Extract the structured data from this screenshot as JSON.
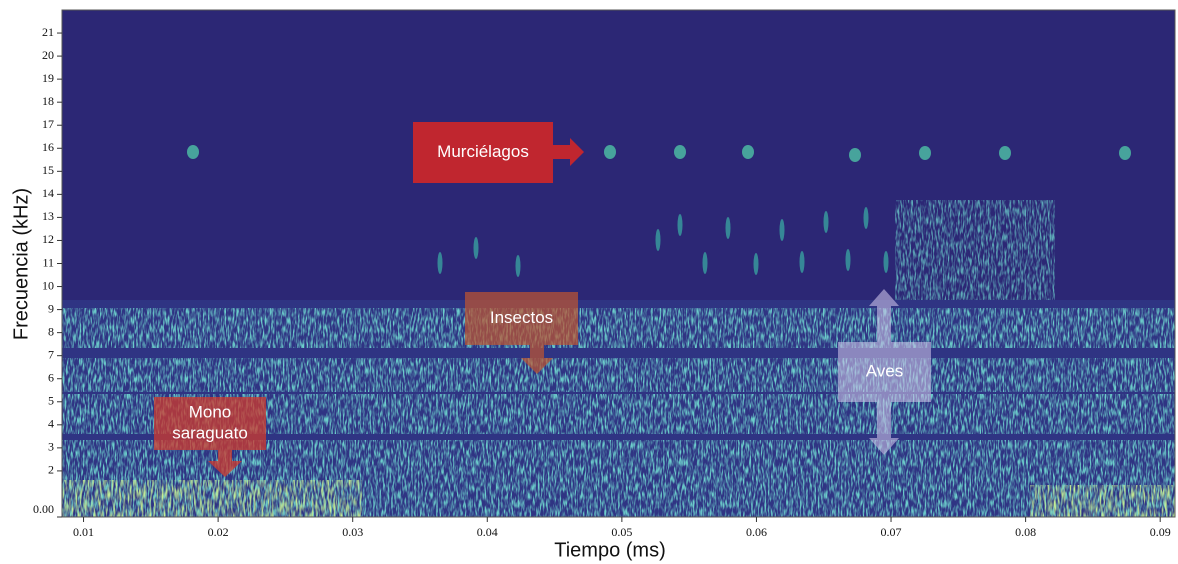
{
  "chart_data": {
    "type": "spectrogram",
    "xlabel": "Tiempo (ms)",
    "ylabel": "Frecuencia (kHz)",
    "xlim": [
      0.0084,
      0.0911
    ],
    "xticks": [
      0.01,
      0.02,
      0.03,
      0.04,
      0.05,
      0.06,
      0.07,
      0.08,
      0.09
    ],
    "ylim": [
      0,
      22
    ],
    "yticks": [
      {
        "value": 0,
        "label": "0.00"
      },
      2,
      3,
      4,
      5,
      6,
      7,
      8,
      9,
      10,
      11,
      12,
      13,
      14,
      15,
      16,
      17,
      18,
      19,
      20,
      21
    ],
    "annotations": [
      {
        "lines": [
          "Murciélagos"
        ]
      },
      {
        "lines": [
          "Insectos"
        ]
      },
      {
        "lines": [
          "Mono",
          "saraguato"
        ]
      },
      {
        "lines": [
          "Aves"
        ]
      }
    ]
  }
}
